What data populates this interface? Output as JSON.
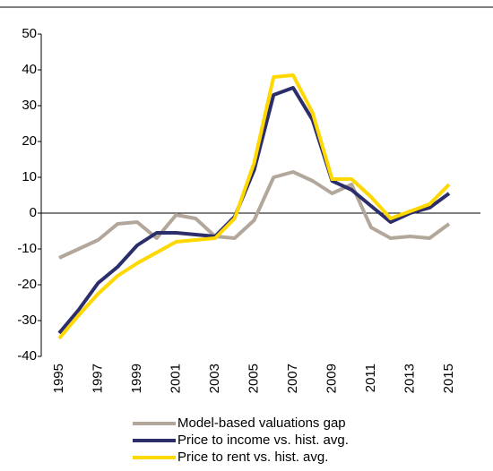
{
  "chart_data": {
    "type": "line",
    "x": [
      1995,
      1996,
      1997,
      1998,
      1999,
      2000,
      2001,
      2002,
      2003,
      2004,
      2005,
      2006,
      2007,
      2008,
      2009,
      2010,
      2011,
      2012,
      2013,
      2014,
      2015
    ],
    "series": [
      {
        "name": "Model-based valuations gap",
        "color": "#b3a79c",
        "values": [
          -12.5,
          -10,
          -7.5,
          -3,
          -2.5,
          -7,
          -0.5,
          -1.5,
          -6.5,
          -7,
          -2,
          10,
          11.5,
          9,
          5.5,
          8,
          -4,
          -7,
          -6.5,
          -7,
          -3
        ]
      },
      {
        "name": "Price to income vs. hist. avg.",
        "color": "#2b2e6b",
        "values": [
          -33.5,
          -27,
          -19.5,
          -15,
          -9,
          -5.5,
          -5.5,
          -6,
          -6.5,
          -1,
          12,
          33,
          35,
          26,
          9,
          6.5,
          2,
          -2.5,
          0,
          1.5,
          5.5
        ]
      },
      {
        "name": "Price to rent vs. hist. avg.",
        "color": "#ffd800",
        "values": [
          -35,
          -28.5,
          -22.5,
          -17.5,
          -14,
          -11,
          -8,
          -7.5,
          -7,
          -1.5,
          14,
          38,
          38.5,
          28,
          9.5,
          9.5,
          4.5,
          -1.5,
          0.5,
          2.5,
          8
        ]
      }
    ],
    "xlim": [
      1995,
      2015
    ],
    "xticks": [
      1995,
      1997,
      1999,
      2001,
      2003,
      2005,
      2007,
      2009,
      2011,
      2013,
      2015
    ],
    "ylim": [
      -40,
      50
    ],
    "yticks": [
      -40,
      -30,
      -20,
      -10,
      0,
      10,
      20,
      30,
      40,
      50
    ],
    "grid": false,
    "legend": "bottom"
  }
}
